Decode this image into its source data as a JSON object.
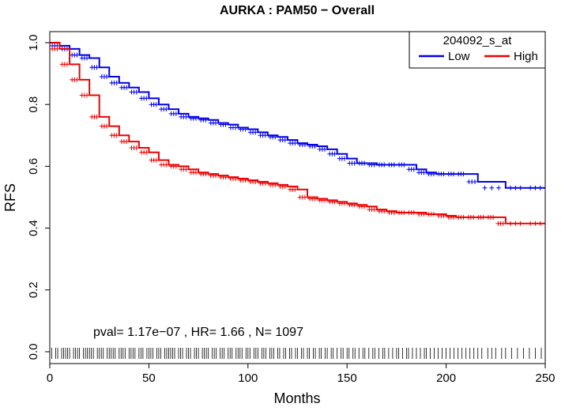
{
  "chart_data": {
    "type": "line",
    "title": "AURKA : PAM50 − Overall",
    "xlabel": "Months",
    "ylabel": "RFS",
    "xlim": [
      0,
      250
    ],
    "ylim": [
      0,
      1
    ],
    "x_ticks": [
      "0",
      "50",
      "100",
      "150",
      "200",
      "250"
    ],
    "y_ticks": [
      "0.0",
      "0.2",
      "0.4",
      "0.6",
      "0.8",
      "1.0"
    ],
    "legend": {
      "title": "204092_s_at",
      "position": "top-right"
    },
    "annotation": "pval= 1.17e−07 ,  HR= 1.66 ,  N= 1097",
    "grid": false,
    "series": [
      {
        "name": "Low",
        "color": "#0000ee",
        "x": [
          0,
          5,
          10,
          15,
          20,
          25,
          30,
          35,
          40,
          45,
          50,
          55,
          60,
          65,
          70,
          75,
          80,
          85,
          90,
          95,
          100,
          105,
          110,
          115,
          120,
          125,
          130,
          135,
          140,
          145,
          150,
          155,
          160,
          165,
          170,
          175,
          180,
          185,
          190,
          195,
          200,
          205,
          210,
          216,
          230,
          240,
          250
        ],
        "y": [
          1.0,
          0.99,
          0.98,
          0.96,
          0.95,
          0.92,
          0.89,
          0.87,
          0.855,
          0.84,
          0.82,
          0.8,
          0.785,
          0.77,
          0.76,
          0.755,
          0.75,
          0.74,
          0.735,
          0.725,
          0.72,
          0.71,
          0.7,
          0.695,
          0.685,
          0.675,
          0.67,
          0.665,
          0.655,
          0.64,
          0.625,
          0.61,
          0.61,
          0.605,
          0.605,
          0.605,
          0.605,
          0.59,
          0.58,
          0.575,
          0.575,
          0.575,
          0.575,
          0.55,
          0.53,
          0.53,
          0.53
        ]
      },
      {
        "name": "High",
        "color": "#ee0000",
        "x": [
          0,
          5,
          10,
          15,
          20,
          25,
          30,
          35,
          40,
          45,
          50,
          55,
          60,
          65,
          70,
          75,
          80,
          85,
          90,
          95,
          100,
          105,
          110,
          115,
          120,
          125,
          130,
          135,
          140,
          145,
          150,
          155,
          160,
          165,
          170,
          175,
          180,
          185,
          190,
          195,
          200,
          205,
          210,
          215,
          220,
          225,
          230,
          240,
          250
        ],
        "y": [
          1.0,
          0.98,
          0.93,
          0.88,
          0.83,
          0.76,
          0.73,
          0.7,
          0.68,
          0.66,
          0.645,
          0.62,
          0.605,
          0.6,
          0.59,
          0.58,
          0.575,
          0.57,
          0.565,
          0.56,
          0.555,
          0.55,
          0.545,
          0.54,
          0.535,
          0.525,
          0.5,
          0.495,
          0.49,
          0.485,
          0.48,
          0.475,
          0.47,
          0.46,
          0.455,
          0.45,
          0.45,
          0.45,
          0.445,
          0.445,
          0.44,
          0.435,
          0.435,
          0.435,
          0.435,
          0.435,
          0.415,
          0.415,
          0.415
        ]
      }
    ],
    "rug": [
      1,
      3,
      4,
      6,
      7,
      8,
      9,
      10,
      12,
      13,
      14,
      15,
      17,
      18,
      19,
      20,
      21,
      22,
      24,
      25,
      26,
      27,
      29,
      30,
      31,
      32,
      33,
      35,
      36,
      37,
      38,
      40,
      41,
      42,
      43,
      45,
      46,
      47,
      49,
      50,
      51,
      52,
      54,
      55,
      56,
      58,
      59,
      60,
      61,
      62,
      63,
      65,
      66,
      67,
      69,
      70,
      71,
      73,
      74,
      75,
      77,
      78,
      79,
      80,
      82,
      83,
      84,
      86,
      87,
      88,
      90,
      91,
      92,
      94,
      95,
      96,
      97,
      99,
      100,
      101,
      103,
      104,
      105,
      107,
      108,
      109,
      111,
      112,
      113,
      115,
      116,
      118,
      119,
      121,
      122,
      124,
      125,
      127,
      128,
      130,
      131,
      133,
      134,
      136,
      137,
      139,
      140,
      142,
      143,
      145,
      147,
      148,
      150,
      151,
      153,
      154,
      156,
      158,
      159,
      161,
      163,
      164,
      166,
      168,
      169,
      171,
      173,
      175,
      176,
      178,
      180,
      181,
      183,
      185,
      187,
      189,
      190,
      192,
      194,
      196,
      198,
      200,
      202,
      204,
      206,
      208,
      210,
      212,
      214,
      216,
      218,
      221,
      223,
      225,
      228,
      230,
      233,
      236,
      239,
      242,
      245,
      248
    ]
  }
}
